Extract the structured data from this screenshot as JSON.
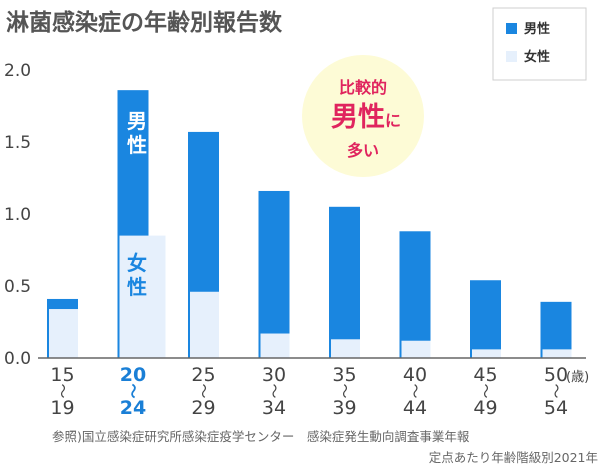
{
  "chart_data": {
    "type": "bar",
    "title": "淋菌感染症の年齢別報告数",
    "categories": [
      {
        "from": "15",
        "to": "19"
      },
      {
        "from": "20",
        "to": "24"
      },
      {
        "from": "25",
        "to": "29"
      },
      {
        "from": "30",
        "to": "34"
      },
      {
        "from": "35",
        "to": "39"
      },
      {
        "from": "40",
        "to": "44"
      },
      {
        "from": "45",
        "to": "49"
      },
      {
        "from": "50",
        "to": "54"
      }
    ],
    "highlight_category_index": 1,
    "x_unit": "(歳)",
    "series": [
      {
        "name": "男性",
        "color": "#1a86e0",
        "values": [
          0.41,
          1.86,
          1.57,
          1.16,
          1.05,
          0.88,
          0.54,
          0.39
        ]
      },
      {
        "name": "女性",
        "color": "#e6f0fc",
        "values": [
          0.34,
          0.85,
          0.46,
          0.17,
          0.13,
          0.12,
          0.06,
          0.06
        ]
      }
    ],
    "yticks": [
      "0.0",
      "0.5",
      "1.0",
      "1.5",
      "2.0"
    ],
    "ylim": [
      0,
      2.0
    ],
    "grid": false,
    "legend": {
      "position": "top-right"
    },
    "bar_labels": {
      "male": [
        "男",
        "性"
      ],
      "female": [
        "女",
        "性"
      ]
    },
    "callout": {
      "line1": "比較的",
      "line2_big": "男性",
      "line2_small": "に",
      "line3": "多い",
      "bg_color": "#fdfbd6",
      "text_color": "#e0245e"
    },
    "source_lines": [
      "参照)国立感染症研究所感染症疫学センター　感染症発生動向調査事業年報",
      "定点あたり年齢階級別2021年"
    ]
  }
}
